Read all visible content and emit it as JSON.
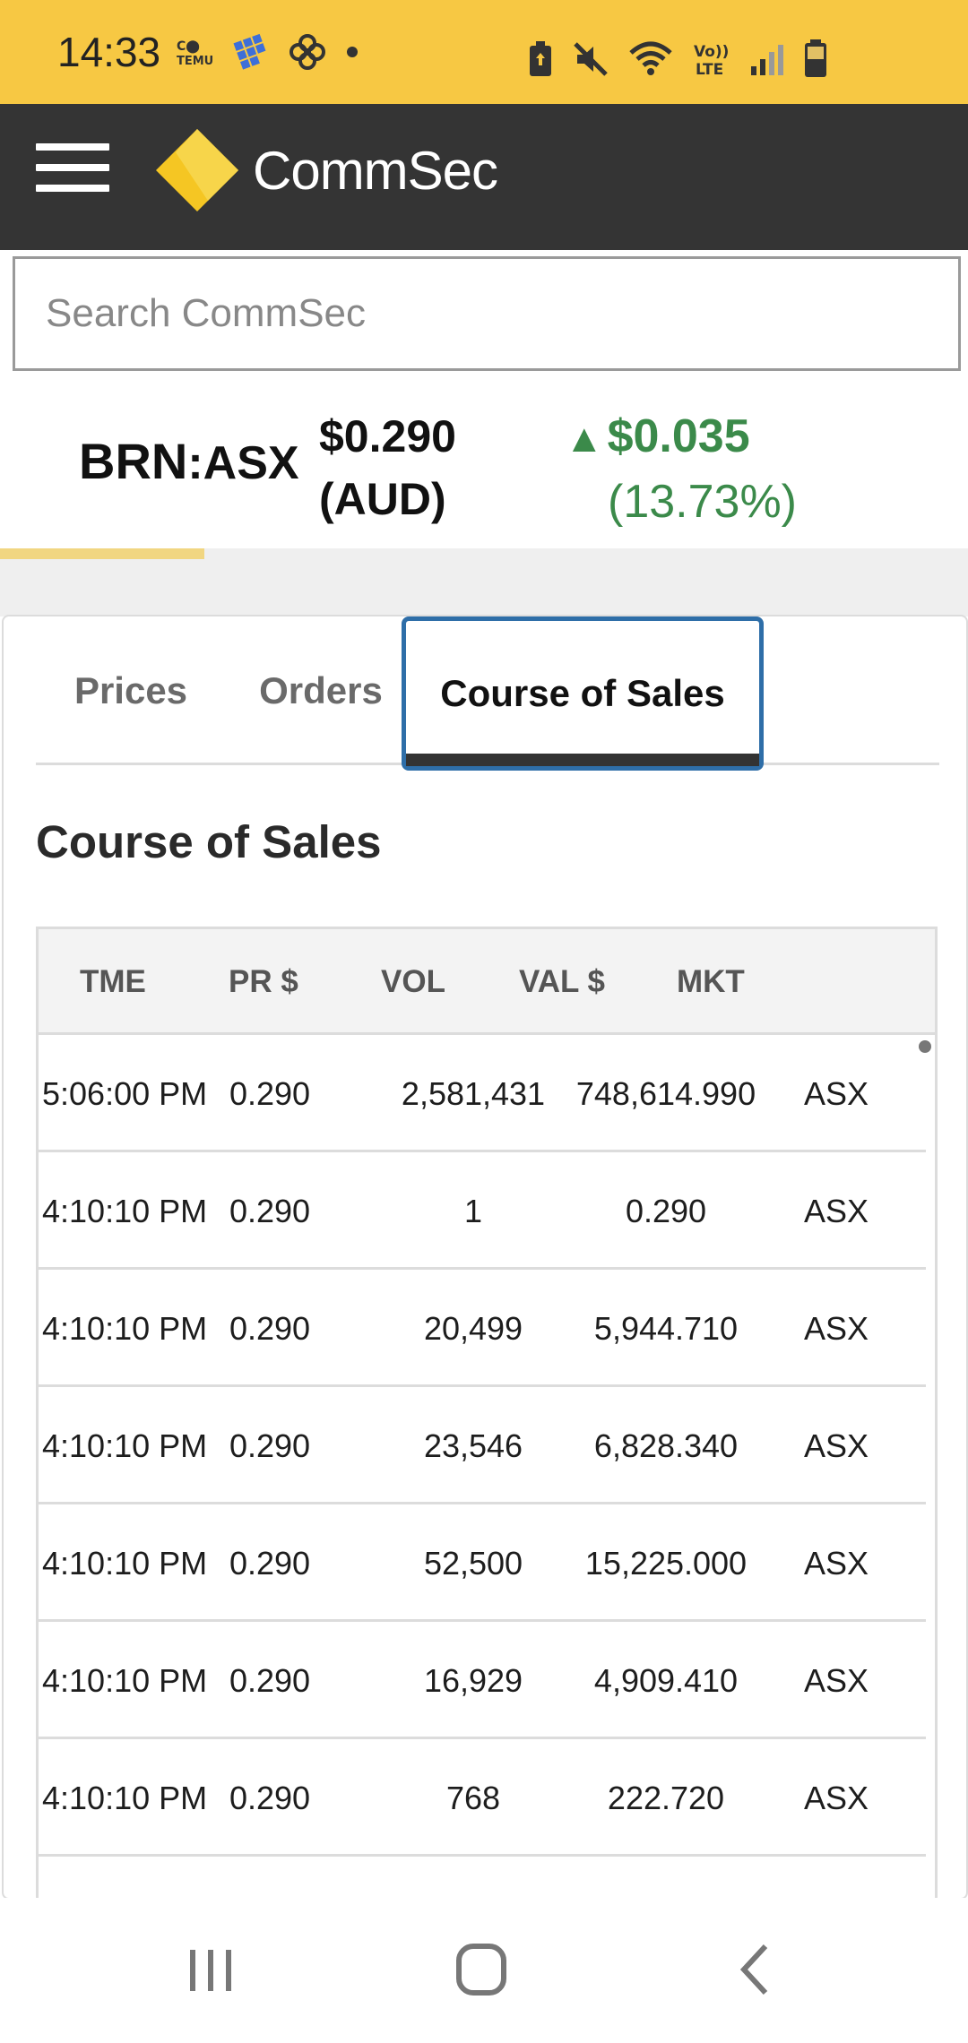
{
  "status_bar": {
    "time": "14:33",
    "colors": {
      "background": "#f7c843"
    },
    "left_icons": [
      "cc-icon",
      "temu-icon",
      "pinwheel-icon",
      "dot-icon"
    ],
    "right_icons": [
      "battery-saver-icon",
      "mute-icon",
      "wifi-icon",
      "volte-icon",
      "signal-icon",
      "battery-icon"
    ],
    "volte_label": "Vo) LTE"
  },
  "header": {
    "brand_name": "CommSec",
    "colors": {
      "background": "#343434",
      "logo": "#f5c623"
    }
  },
  "search": {
    "placeholder": "Search CommSec",
    "value": ""
  },
  "quote": {
    "code": "BRN",
    "exchange": ":ASX",
    "price": "$0.290",
    "currency": "(AUD)",
    "change_amount": "$0.035",
    "change_percent": "(13.73%)",
    "change_color": "#3b8a4a"
  },
  "tabs": [
    {
      "label": "Prices",
      "active": false
    },
    {
      "label": "Orders",
      "active": false
    },
    {
      "label": "Course of Sales",
      "active": true
    }
  ],
  "section_title": "Course of Sales",
  "table": {
    "headers": [
      "TME",
      "PR $",
      "VOL",
      "VAL $",
      "MKT"
    ],
    "rows": [
      [
        "5:06:00 PM",
        "0.290",
        "2,581,431",
        "748,614.990",
        "ASX"
      ],
      [
        "4:10:10 PM",
        "0.290",
        "1",
        "0.290",
        "ASX"
      ],
      [
        "4:10:10 PM",
        "0.290",
        "20,499",
        "5,944.710",
        "ASX"
      ],
      [
        "4:10:10 PM",
        "0.290",
        "23,546",
        "6,828.340",
        "ASX"
      ],
      [
        "4:10:10 PM",
        "0.290",
        "52,500",
        "15,225.000",
        "ASX"
      ],
      [
        "4:10:10 PM",
        "0.290",
        "16,929",
        "4,909.410",
        "ASX"
      ],
      [
        "4:10:10 PM",
        "0.290",
        "768",
        "222.720",
        "ASX"
      ],
      [
        "",
        "",
        "",
        "",
        ""
      ]
    ]
  },
  "nav_bar": {
    "buttons": [
      "recents-icon",
      "home-icon",
      "back-icon"
    ]
  }
}
